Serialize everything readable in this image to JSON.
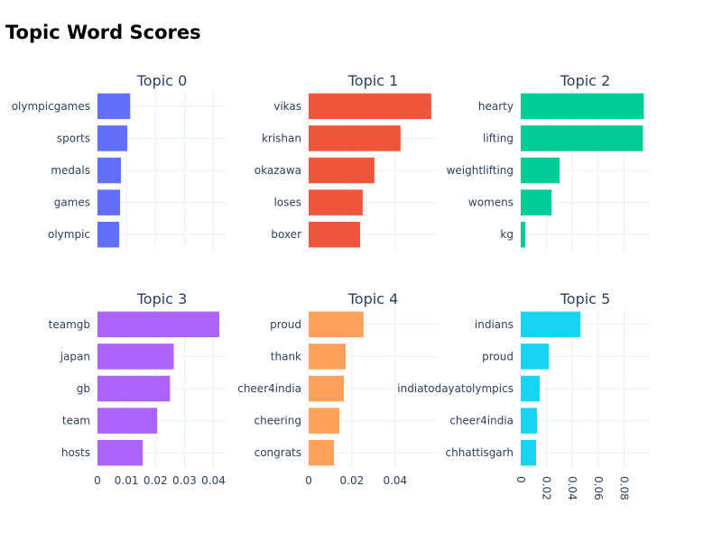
{
  "chart_data": [
    {
      "type": "bar",
      "orientation": "horizontal",
      "title": "Topic 0",
      "color": "#636efa",
      "categories": [
        "olympicgames",
        "sports",
        "medals",
        "games",
        "olympic"
      ],
      "values": [
        0.0113,
        0.0103,
        0.0081,
        0.0078,
        0.0075
      ],
      "xlim": [
        0,
        0.0445
      ],
      "xticks": [],
      "grid": true
    },
    {
      "type": "bar",
      "orientation": "horizontal",
      "title": "Topic 1",
      "color": "#ef553b",
      "categories": [
        "vikas",
        "krishan",
        "okazawa",
        "loses",
        "boxer"
      ],
      "values": [
        0.0567,
        0.0425,
        0.0304,
        0.025,
        0.0238
      ],
      "xlim": [
        0,
        0.0597
      ],
      "xticks": [],
      "grid": true
    },
    {
      "type": "bar",
      "orientation": "horizontal",
      "title": "Topic 2",
      "color": "#00cc96",
      "categories": [
        "hearty",
        "lifting",
        "weightlifting",
        "womens",
        "kg"
      ],
      "values": [
        0.0954,
        0.0947,
        0.0302,
        0.0239,
        0.0035
      ],
      "xlim": [
        0,
        0.1
      ],
      "xticks": [],
      "grid": true
    },
    {
      "type": "bar",
      "orientation": "horizontal",
      "title": "Topic 3",
      "color": "#ab63fa",
      "categories": [
        "teamgb",
        "japan",
        "gb",
        "team",
        "hosts"
      ],
      "values": [
        0.042,
        0.0263,
        0.025,
        0.0206,
        0.0156
      ],
      "xlim": [
        0,
        0.0445
      ],
      "xticks": [
        "0",
        "0.01",
        "0.02",
        "0.03",
        "0.04"
      ],
      "grid": true
    },
    {
      "type": "bar",
      "orientation": "horizontal",
      "title": "Topic 4",
      "color": "#ffa15a",
      "categories": [
        "proud",
        "thank",
        "cheer4india",
        "cheering",
        "congrats"
      ],
      "values": [
        0.0254,
        0.0171,
        0.0163,
        0.0142,
        0.0117
      ],
      "xlim": [
        0,
        0.0597
      ],
      "xticks": [
        "0",
        "0.02",
        "0.04"
      ],
      "grid": true
    },
    {
      "type": "bar",
      "orientation": "horizontal",
      "title": "Topic 5",
      "color": "#19d3f3",
      "categories": [
        "indians",
        "proud",
        "indiatodayatolympics",
        "cheer4india",
        "chhattisgarh"
      ],
      "values": [
        0.0463,
        0.0218,
        0.0147,
        0.0126,
        0.0119
      ],
      "xlim": [
        0,
        0.1
      ],
      "xticks": [
        "0",
        "0.02",
        "0.04",
        "0.06",
        "0.08"
      ],
      "xtick_rotation": 90,
      "grid": true
    }
  ],
  "title": "Topic Word Scores"
}
